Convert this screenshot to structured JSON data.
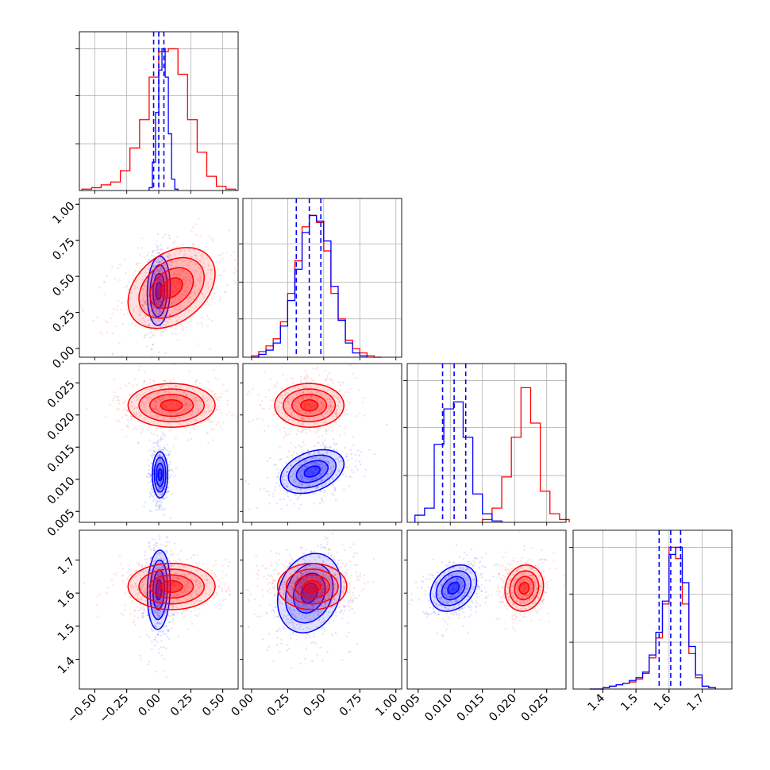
{
  "chart_data": {
    "type": "corner",
    "title": "",
    "colors": {
      "series_a": "#0000ff",
      "series_b": "#ff0000"
    },
    "grid": true,
    "parameters": [
      {
        "range": [
          -0.62,
          0.62
        ],
        "ticks": [
          -0.5,
          -0.25,
          0.0,
          0.25,
          0.5
        ],
        "tick_labels": [
          "−0.50",
          "−0.25",
          "0.00",
          "0.25",
          "0.50"
        ]
      },
      {
        "range": [
          -0.06,
          1.04
        ],
        "ticks": [
          0.0,
          0.25,
          0.5,
          0.75,
          1.0
        ],
        "tick_labels": [
          "0.00",
          "0.25",
          "0.50",
          "0.75",
          "1.00"
        ]
      },
      {
        "range": [
          0.0033,
          0.028
        ],
        "ticks": [
          0.005,
          0.01,
          0.015,
          0.02,
          0.025
        ],
        "tick_labels": [
          "0.005",
          "0.010",
          "0.015",
          "0.020",
          "0.025"
        ]
      },
      {
        "range": [
          1.31,
          1.79
        ],
        "ticks": [
          1.4,
          1.5,
          1.6,
          1.7
        ],
        "tick_labels": [
          "1.4",
          "1.5",
          "1.6",
          "1.7"
        ]
      }
    ],
    "marginals": [
      {
        "ymax": 1.12,
        "yticks": [
          0.33,
          0.67,
          1.0
        ],
        "series_a": {
          "centers": [
            -0.0625,
            -0.0375,
            -0.0125,
            0.0125,
            0.0375,
            0.0625,
            0.0875,
            0.1125,
            0.1375
          ],
          "values": [
            0.02,
            0.2,
            0.55,
            0.85,
            1.0,
            0.8,
            0.4,
            0.08,
            0.01
          ]
        },
        "series_b": {
          "centers": [
            -0.5625,
            -0.4875,
            -0.4125,
            -0.3375,
            -0.2625,
            -0.1875,
            -0.1125,
            -0.0375,
            0.0375,
            0.1125,
            0.1875,
            0.2625,
            0.3375,
            0.4125,
            0.4875,
            0.5625
          ],
          "values": [
            0.01,
            0.02,
            0.04,
            0.06,
            0.14,
            0.3,
            0.5,
            0.8,
            0.98,
            1.0,
            0.82,
            0.5,
            0.27,
            0.1,
            0.03,
            0.01
          ]
        },
        "quantiles": [
          -0.04,
          0.0,
          0.04
        ]
      },
      {
        "ymax": 1.12,
        "yticks": [
          0.27,
          0.53,
          0.8
        ],
        "series_a": {
          "centers": [
            0.025,
            0.075,
            0.125,
            0.175,
            0.225,
            0.275,
            0.325,
            0.375,
            0.425,
            0.475,
            0.525,
            0.575,
            0.625,
            0.675,
            0.725,
            0.775
          ],
          "values": [
            0.0,
            0.02,
            0.05,
            0.1,
            0.22,
            0.4,
            0.62,
            0.88,
            1.0,
            0.96,
            0.82,
            0.5,
            0.26,
            0.1,
            0.03,
            0.01
          ]
        },
        "series_b": {
          "centers": [
            0.025,
            0.075,
            0.125,
            0.175,
            0.225,
            0.275,
            0.325,
            0.375,
            0.425,
            0.475,
            0.525,
            0.575,
            0.625,
            0.675,
            0.725,
            0.775,
            0.825,
            0.875
          ],
          "values": [
            0.01,
            0.04,
            0.08,
            0.13,
            0.25,
            0.45,
            0.68,
            0.92,
            1.0,
            0.95,
            0.75,
            0.45,
            0.27,
            0.12,
            0.06,
            0.03,
            0.01,
            0.0
          ]
        },
        "quantiles": [
          0.31,
          0.4,
          0.48
        ]
      },
      {
        "ymax": 1.12,
        "yticks": [
          0.33,
          0.67,
          1.0
        ],
        "series_a": {
          "centers": [
            0.00525,
            0.00675,
            0.00825,
            0.00975,
            0.01125,
            0.01275,
            0.01425,
            0.01575,
            0.01725
          ],
          "values": [
            0.05,
            0.1,
            0.55,
            0.8,
            0.85,
            0.6,
            0.2,
            0.06,
            0.01
          ]
        },
        "series_b": {
          "centers": [
            0.01575,
            0.01725,
            0.01875,
            0.02025,
            0.02175,
            0.02325,
            0.02475,
            0.02625,
            0.02775
          ],
          "values": [
            0.02,
            0.1,
            0.32,
            0.6,
            0.95,
            0.7,
            0.22,
            0.06,
            0.02
          ]
        },
        "quantiles": [
          0.0088,
          0.0106,
          0.0124
        ]
      },
      {
        "ymax": 1.12,
        "yticks": [
          0.33,
          0.67,
          1.0
        ],
        "series_a": {
          "centers": [
            1.37,
            1.39,
            1.41,
            1.43,
            1.45,
            1.47,
            1.49,
            1.51,
            1.53,
            1.55,
            1.57,
            1.59,
            1.61,
            1.63,
            1.65,
            1.67,
            1.69,
            1.71,
            1.73
          ],
          "values": [
            0.0,
            0.0,
            0.01,
            0.02,
            0.03,
            0.04,
            0.06,
            0.08,
            0.12,
            0.24,
            0.4,
            0.62,
            0.95,
            1.0,
            0.75,
            0.3,
            0.1,
            0.02,
            0.01
          ]
        },
        "series_b": {
          "centers": [
            1.37,
            1.39,
            1.41,
            1.43,
            1.45,
            1.47,
            1.49,
            1.51,
            1.53,
            1.55,
            1.57,
            1.59,
            1.61,
            1.63,
            1.65,
            1.67,
            1.69,
            1.71,
            1.73
          ],
          "values": [
            0.0,
            0.0,
            0.01,
            0.02,
            0.03,
            0.04,
            0.05,
            0.07,
            0.11,
            0.22,
            0.36,
            0.6,
            1.0,
            0.92,
            0.6,
            0.25,
            0.08,
            0.02,
            0.01
          ]
        },
        "quantiles": [
          1.57,
          1.605,
          1.635
        ]
      }
    ],
    "pairs": [
      {
        "x": 0,
        "y": 1,
        "series_a": {
          "mean": [
            0.0,
            0.4
          ],
          "sd": [
            0.045,
            0.12
          ],
          "rho": 0.1
        },
        "series_b": {
          "mean": [
            0.1,
            0.42
          ],
          "sd": [
            0.17,
            0.14
          ],
          "rho": 0.35
        }
      },
      {
        "x": 0,
        "y": 2,
        "series_a": {
          "mean": [
            0.01,
            0.0107
          ],
          "sd": [
            0.03,
            0.0018
          ],
          "rho": 0.0
        },
        "series_b": {
          "mean": [
            0.1,
            0.0215
          ],
          "sd": [
            0.17,
            0.0017
          ],
          "rho": 0.0
        }
      },
      {
        "x": 1,
        "y": 2,
        "series_a": {
          "mean": [
            0.42,
            0.0112
          ],
          "sd": [
            0.11,
            0.0017
          ],
          "rho": 0.35
        },
        "series_b": {
          "mean": [
            0.4,
            0.0215
          ],
          "sd": [
            0.12,
            0.0017
          ],
          "rho": 0.0
        }
      },
      {
        "x": 0,
        "y": 3,
        "series_a": {
          "mean": [
            0.0,
            1.61
          ],
          "sd": [
            0.045,
            0.06
          ],
          "rho": 0.1
        },
        "series_b": {
          "mean": [
            0.1,
            1.62
          ],
          "sd": [
            0.17,
            0.035
          ],
          "rho": 0.0
        }
      },
      {
        "x": 1,
        "y": 3,
        "series_a": {
          "mean": [
            0.4,
            1.6
          ],
          "sd": [
            0.11,
            0.06
          ],
          "rho": 0.2
        },
        "series_b": {
          "mean": [
            0.42,
            1.62
          ],
          "sd": [
            0.12,
            0.035
          ],
          "rho": 0.0
        }
      },
      {
        "x": 2,
        "y": 3,
        "series_a": {
          "mean": [
            0.0105,
            1.615
          ],
          "sd": [
            0.0018,
            0.035
          ],
          "rho": 0.3
        },
        "series_b": {
          "mean": [
            0.0215,
            1.615
          ],
          "sd": [
            0.0015,
            0.035
          ],
          "rho": 0.1
        }
      }
    ]
  }
}
